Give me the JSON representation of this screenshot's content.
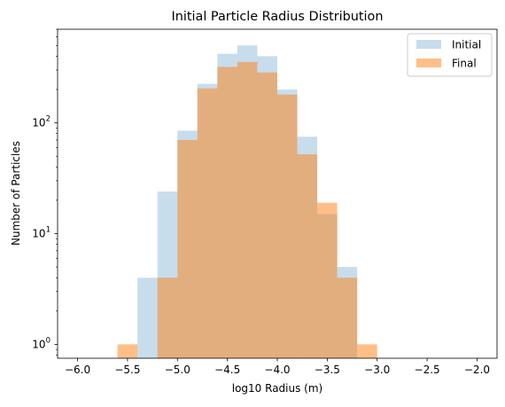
{
  "chart_data": {
    "type": "bar",
    "title": "Initial Particle Radius Distribution",
    "xlabel": "log10 Radius (m)",
    "ylabel": "Number of Particles",
    "xlim": [
      -6.2,
      -1.8
    ],
    "ylim": [
      0.75,
      700
    ],
    "yscale": "log",
    "grid": false,
    "legend_position": "top-right",
    "bin_edges": [
      -5.6,
      -5.4,
      -5.2,
      -5.0,
      -4.8,
      -4.6,
      -4.4,
      -4.2,
      -4.0,
      -3.8,
      -3.6,
      -3.4,
      -3.2,
      -3.0
    ],
    "series": [
      {
        "name": "Initial",
        "color": "#1f77b4",
        "alpha": 0.25,
        "values": [
          0,
          4,
          24,
          85,
          225,
          420,
          500,
          400,
          200,
          75,
          15,
          5,
          0
        ]
      },
      {
        "name": "Final",
        "color": "#ff7f0e",
        "alpha": 0.5,
        "values": [
          1,
          0,
          4,
          70,
          205,
          320,
          355,
          285,
          180,
          52,
          19,
          4,
          1
        ]
      }
    ],
    "x_ticks": [
      {
        "value": -6.0,
        "label": "−6.0"
      },
      {
        "value": -5.5,
        "label": "−5.5"
      },
      {
        "value": -5.0,
        "label": "−5.0"
      },
      {
        "value": -4.5,
        "label": "−4.5"
      },
      {
        "value": -4.0,
        "label": "−4.0"
      },
      {
        "value": -3.5,
        "label": "−3.5"
      },
      {
        "value": -3.0,
        "label": "−3.0"
      },
      {
        "value": -2.5,
        "label": "−2.5"
      },
      {
        "value": -2.0,
        "label": "−2.0"
      }
    ],
    "y_ticks": [
      {
        "value": 1,
        "base": "10",
        "exp": "0"
      },
      {
        "value": 10,
        "base": "10",
        "exp": "1"
      },
      {
        "value": 100,
        "base": "10",
        "exp": "2"
      }
    ]
  }
}
